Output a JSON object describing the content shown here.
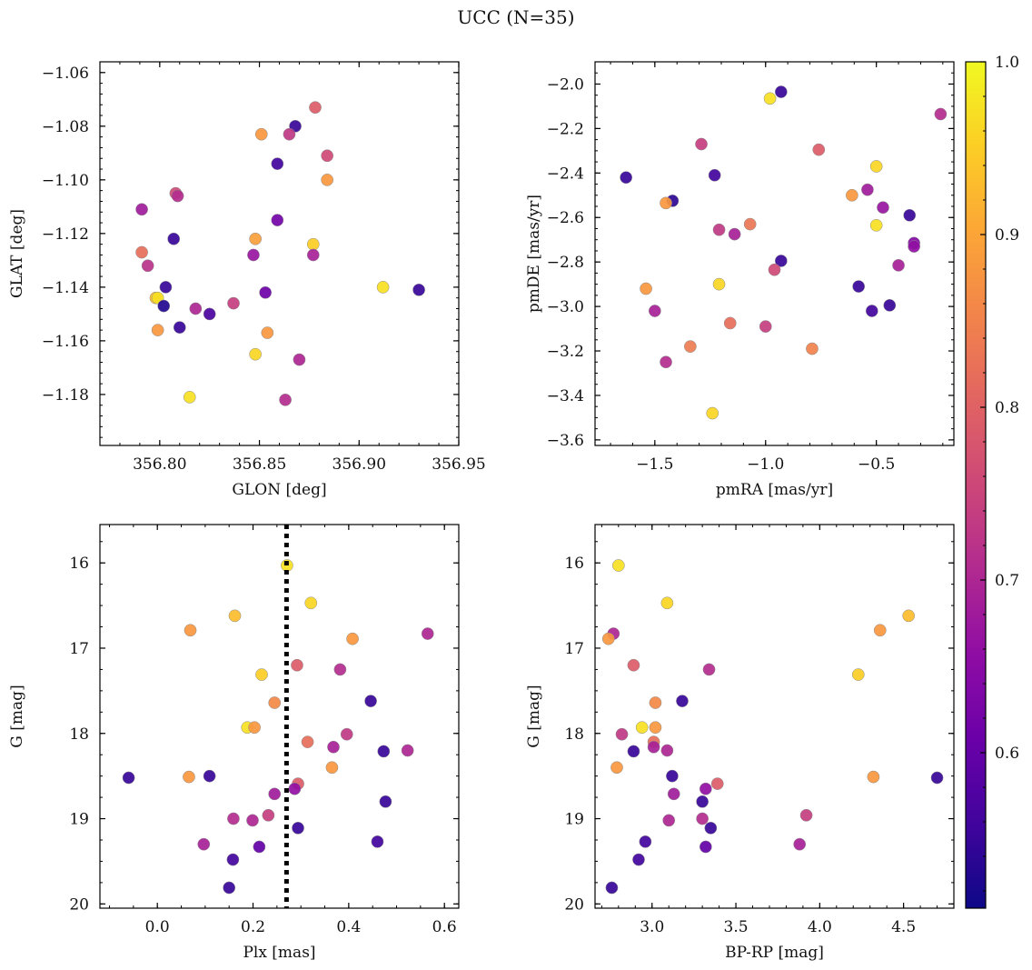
{
  "title": "UCC (N=35)",
  "colorbar": {
    "range": [
      0.51,
      1.0
    ],
    "ticks": [
      0.6,
      0.7,
      0.8,
      0.9,
      1.0
    ],
    "tick_labels": [
      "0.6",
      "0.7",
      "0.8",
      "0.9",
      "1.0"
    ],
    "colormap": "plasma"
  },
  "chart_data": [
    {
      "type": "scatter",
      "xlabel": "GLON [deg]",
      "ylabel": "GLAT [deg]",
      "xlim": [
        356.77,
        356.95
      ],
      "ylim": [
        -1.199,
        -1.056
      ],
      "x_ticks": [
        356.8,
        356.85,
        356.9,
        356.95
      ],
      "x_tick_labels": [
        "356.80",
        "356.85",
        "356.90",
        "356.95"
      ],
      "y_ticks": [
        -1.18,
        -1.16,
        -1.14,
        -1.12,
        -1.1,
        -1.08,
        -1.06
      ],
      "y_tick_labels": [
        "−1.18",
        "−1.16",
        "−1.14",
        "−1.12",
        "−1.10",
        "−1.08",
        "−1.06"
      ],
      "x_minor_step": 0.01,
      "y_minor_step": 0.004,
      "points": [
        {
          "x": 356.878,
          "y": -1.073,
          "c": 0.79
        },
        {
          "x": 356.868,
          "y": -1.08,
          "c": 0.55
        },
        {
          "x": 356.865,
          "y": -1.083,
          "c": 0.73
        },
        {
          "x": 356.851,
          "y": -1.083,
          "c": 0.88
        },
        {
          "x": 356.884,
          "y": -1.091,
          "c": 0.76
        },
        {
          "x": 356.859,
          "y": -1.094,
          "c": 0.56
        },
        {
          "x": 356.884,
          "y": -1.1,
          "c": 0.88
        },
        {
          "x": 356.808,
          "y": -1.105,
          "c": 0.76
        },
        {
          "x": 356.809,
          "y": -1.106,
          "c": 0.71
        },
        {
          "x": 356.791,
          "y": -1.111,
          "c": 0.68
        },
        {
          "x": 356.859,
          "y": -1.115,
          "c": 0.62
        },
        {
          "x": 356.807,
          "y": -1.122,
          "c": 0.55
        },
        {
          "x": 356.848,
          "y": -1.122,
          "c": 0.89
        },
        {
          "x": 356.877,
          "y": -1.124,
          "c": 0.95
        },
        {
          "x": 356.791,
          "y": -1.127,
          "c": 0.82
        },
        {
          "x": 356.847,
          "y": -1.128,
          "c": 0.67
        },
        {
          "x": 356.877,
          "y": -1.128,
          "c": 0.69
        },
        {
          "x": 356.794,
          "y": -1.132,
          "c": 0.72
        },
        {
          "x": 356.803,
          "y": -1.14,
          "c": 0.55
        },
        {
          "x": 356.912,
          "y": -1.14,
          "c": 0.97
        },
        {
          "x": 356.93,
          "y": -1.141,
          "c": 0.55
        },
        {
          "x": 356.853,
          "y": -1.142,
          "c": 0.61
        },
        {
          "x": 356.798,
          "y": -1.144,
          "c": 0.93
        },
        {
          "x": 356.799,
          "y": -1.144,
          "c": 0.97
        },
        {
          "x": 356.837,
          "y": -1.146,
          "c": 0.74
        },
        {
          "x": 356.802,
          "y": -1.147,
          "c": 0.53
        },
        {
          "x": 356.818,
          "y": -1.148,
          "c": 0.7
        },
        {
          "x": 356.825,
          "y": -1.15,
          "c": 0.57
        },
        {
          "x": 356.81,
          "y": -1.155,
          "c": 0.55
        },
        {
          "x": 356.799,
          "y": -1.156,
          "c": 0.88
        },
        {
          "x": 356.854,
          "y": -1.157,
          "c": 0.88
        },
        {
          "x": 356.848,
          "y": -1.165,
          "c": 0.96
        },
        {
          "x": 356.87,
          "y": -1.167,
          "c": 0.7
        },
        {
          "x": 356.815,
          "y": -1.181,
          "c": 0.97
        },
        {
          "x": 356.863,
          "y": -1.182,
          "c": 0.71
        }
      ]
    },
    {
      "type": "scatter",
      "xlabel": "pmRA [mas/yr]",
      "ylabel": "pmDE [mas/yr]",
      "xlim": [
        -1.77,
        -0.15
      ],
      "ylim": [
        -3.625,
        -1.9
      ],
      "x_ticks": [
        -1.5,
        -1.0,
        -0.5
      ],
      "x_tick_labels": [
        "−1.5",
        "−1.0",
        "−0.5"
      ],
      "y_ticks": [
        -3.6,
        -3.4,
        -3.2,
        -3.0,
        -2.8,
        -2.6,
        -2.4,
        -2.2,
        -2.0
      ],
      "y_tick_labels": [
        "−3.6",
        "−3.4",
        "−3.2",
        "−3.0",
        "−2.8",
        "−2.6",
        "−2.4",
        "−2.2",
        "−2.0"
      ],
      "x_minor_step": 0.1,
      "y_minor_step": 0.05,
      "points": [
        {
          "x": -0.93,
          "y": -2.035,
          "c": 0.55
        },
        {
          "x": -0.98,
          "y": -2.065,
          "c": 0.97
        },
        {
          "x": -0.21,
          "y": -2.135,
          "c": 0.71
        },
        {
          "x": -1.29,
          "y": -2.27,
          "c": 0.74
        },
        {
          "x": -0.76,
          "y": -2.295,
          "c": 0.79
        },
        {
          "x": -0.5,
          "y": -2.37,
          "c": 0.96
        },
        {
          "x": -1.23,
          "y": -2.41,
          "c": 0.56
        },
        {
          "x": -1.63,
          "y": -2.42,
          "c": 0.55
        },
        {
          "x": -0.54,
          "y": -2.475,
          "c": 0.68
        },
        {
          "x": -0.61,
          "y": -2.5,
          "c": 0.88
        },
        {
          "x": -1.42,
          "y": -2.525,
          "c": 0.54
        },
        {
          "x": -1.45,
          "y": -2.535,
          "c": 0.88
        },
        {
          "x": -0.47,
          "y": -2.555,
          "c": 0.67
        },
        {
          "x": -0.35,
          "y": -2.59,
          "c": 0.55
        },
        {
          "x": -1.07,
          "y": -2.63,
          "c": 0.83
        },
        {
          "x": -0.5,
          "y": -2.635,
          "c": 0.97
        },
        {
          "x": -1.21,
          "y": -2.655,
          "c": 0.73
        },
        {
          "x": -1.14,
          "y": -2.675,
          "c": 0.69
        },
        {
          "x": -0.33,
          "y": -2.715,
          "c": 0.64
        },
        {
          "x": -0.33,
          "y": -2.73,
          "c": 0.66
        },
        {
          "x": -0.93,
          "y": -2.795,
          "c": 0.55
        },
        {
          "x": -0.4,
          "y": -2.815,
          "c": 0.69
        },
        {
          "x": -0.96,
          "y": -2.835,
          "c": 0.76
        },
        {
          "x": -1.21,
          "y": -2.9,
          "c": 0.96
        },
        {
          "x": -0.58,
          "y": -2.91,
          "c": 0.55
        },
        {
          "x": -1.54,
          "y": -2.92,
          "c": 0.88
        },
        {
          "x": -0.44,
          "y": -2.995,
          "c": 0.55
        },
        {
          "x": -0.52,
          "y": -3.02,
          "c": 0.56
        },
        {
          "x": -1.5,
          "y": -3.02,
          "c": 0.69
        },
        {
          "x": -1.16,
          "y": -3.075,
          "c": 0.82
        },
        {
          "x": -1.0,
          "y": -3.09,
          "c": 0.74
        },
        {
          "x": -1.34,
          "y": -3.18,
          "c": 0.84
        },
        {
          "x": -0.79,
          "y": -3.19,
          "c": 0.85
        },
        {
          "x": -1.45,
          "y": -3.25,
          "c": 0.71
        },
        {
          "x": -1.24,
          "y": -3.48,
          "c": 0.96
        }
      ]
    },
    {
      "type": "scatter",
      "xlabel": "Plx [mas]",
      "ylabel": "G [mag]",
      "xlim": [
        -0.12,
        0.63
      ],
      "ylim": [
        20.05,
        15.55
      ],
      "y_inverted": true,
      "x_ticks": [
        0.0,
        0.2,
        0.4,
        0.6
      ],
      "x_tick_labels": [
        "0.0",
        "0.2",
        "0.4",
        "0.6"
      ],
      "y_ticks": [
        16,
        17,
        18,
        19,
        20
      ],
      "y_tick_labels": [
        "16",
        "17",
        "18",
        "19",
        "20"
      ],
      "x_minor_step": 0.05,
      "y_minor_step": 0.25,
      "vline": {
        "x": 0.27,
        "style": "dotted"
      },
      "points": [
        {
          "x": 0.271,
          "y": 16.03,
          "c": 0.97
        },
        {
          "x": 0.321,
          "y": 16.47,
          "c": 0.96
        },
        {
          "x": 0.162,
          "y": 16.62,
          "c": 0.93
        },
        {
          "x": 0.069,
          "y": 16.79,
          "c": 0.88
        },
        {
          "x": 0.565,
          "y": 16.83,
          "c": 0.7
        },
        {
          "x": 0.408,
          "y": 16.89,
          "c": 0.88
        },
        {
          "x": 0.292,
          "y": 17.2,
          "c": 0.79
        },
        {
          "x": 0.382,
          "y": 17.25,
          "c": 0.71
        },
        {
          "x": 0.218,
          "y": 17.31,
          "c": 0.95
        },
        {
          "x": 0.446,
          "y": 17.62,
          "c": 0.55
        },
        {
          "x": 0.245,
          "y": 17.64,
          "c": 0.86
        },
        {
          "x": 0.188,
          "y": 17.93,
          "c": 0.97
        },
        {
          "x": 0.203,
          "y": 17.93,
          "c": 0.88
        },
        {
          "x": 0.396,
          "y": 18.01,
          "c": 0.73
        },
        {
          "x": 0.314,
          "y": 18.1,
          "c": 0.82
        },
        {
          "x": 0.368,
          "y": 18.16,
          "c": 0.69
        },
        {
          "x": 0.473,
          "y": 18.21,
          "c": 0.55
        },
        {
          "x": 0.523,
          "y": 18.2,
          "c": 0.7
        },
        {
          "x": 0.365,
          "y": 18.4,
          "c": 0.88
        },
        {
          "x": -0.06,
          "y": 18.52,
          "c": 0.55
        },
        {
          "x": 0.066,
          "y": 18.51,
          "c": 0.88
        },
        {
          "x": 0.109,
          "y": 18.5,
          "c": 0.55
        },
        {
          "x": 0.294,
          "y": 18.59,
          "c": 0.79
        },
        {
          "x": 0.287,
          "y": 18.65,
          "c": 0.66
        },
        {
          "x": 0.245,
          "y": 18.71,
          "c": 0.68
        },
        {
          "x": 0.477,
          "y": 18.8,
          "c": 0.55
        },
        {
          "x": 0.232,
          "y": 18.96,
          "c": 0.74
        },
        {
          "x": 0.159,
          "y": 19.0,
          "c": 0.71
        },
        {
          "x": 0.199,
          "y": 19.02,
          "c": 0.7
        },
        {
          "x": 0.294,
          "y": 19.11,
          "c": 0.55
        },
        {
          "x": 0.46,
          "y": 19.27,
          "c": 0.56
        },
        {
          "x": 0.097,
          "y": 19.3,
          "c": 0.69
        },
        {
          "x": 0.213,
          "y": 19.33,
          "c": 0.6
        },
        {
          "x": 0.158,
          "y": 19.48,
          "c": 0.56
        },
        {
          "x": 0.15,
          "y": 19.81,
          "c": 0.55
        }
      ]
    },
    {
      "type": "scatter",
      "xlabel": "BP-RP [mag]",
      "ylabel": "G [mag]",
      "xlim": [
        2.66,
        4.8
      ],
      "ylim": [
        20.05,
        15.55
      ],
      "y_inverted": true,
      "x_ticks": [
        3.0,
        3.5,
        4.0,
        4.5
      ],
      "x_tick_labels": [
        "3.0",
        "3.5",
        "4.0",
        "4.5"
      ],
      "y_ticks": [
        16,
        17,
        18,
        19,
        20
      ],
      "y_tick_labels": [
        "16",
        "17",
        "18",
        "19",
        "20"
      ],
      "x_minor_step": 0.1,
      "y_minor_step": 0.25,
      "points": [
        {
          "x": 2.8,
          "y": 16.03,
          "c": 0.97
        },
        {
          "x": 3.09,
          "y": 16.47,
          "c": 0.96
        },
        {
          "x": 4.53,
          "y": 16.62,
          "c": 0.93
        },
        {
          "x": 4.36,
          "y": 16.79,
          "c": 0.88
        },
        {
          "x": 2.77,
          "y": 16.83,
          "c": 0.7
        },
        {
          "x": 2.74,
          "y": 16.89,
          "c": 0.88
        },
        {
          "x": 2.89,
          "y": 17.2,
          "c": 0.79
        },
        {
          "x": 3.34,
          "y": 17.25,
          "c": 0.71
        },
        {
          "x": 4.23,
          "y": 17.31,
          "c": 0.95
        },
        {
          "x": 3.18,
          "y": 17.62,
          "c": 0.55
        },
        {
          "x": 3.02,
          "y": 17.64,
          "c": 0.86
        },
        {
          "x": 2.94,
          "y": 17.93,
          "c": 0.97
        },
        {
          "x": 3.02,
          "y": 17.93,
          "c": 0.88
        },
        {
          "x": 2.82,
          "y": 18.01,
          "c": 0.73
        },
        {
          "x": 3.01,
          "y": 18.1,
          "c": 0.82
        },
        {
          "x": 3.01,
          "y": 18.16,
          "c": 0.69
        },
        {
          "x": 2.89,
          "y": 18.21,
          "c": 0.55
        },
        {
          "x": 3.09,
          "y": 18.2,
          "c": 0.7
        },
        {
          "x": 2.79,
          "y": 18.4,
          "c": 0.88
        },
        {
          "x": 4.7,
          "y": 18.52,
          "c": 0.55
        },
        {
          "x": 4.32,
          "y": 18.51,
          "c": 0.88
        },
        {
          "x": 3.12,
          "y": 18.5,
          "c": 0.55
        },
        {
          "x": 3.39,
          "y": 18.59,
          "c": 0.79
        },
        {
          "x": 3.32,
          "y": 18.65,
          "c": 0.66
        },
        {
          "x": 3.13,
          "y": 18.71,
          "c": 0.68
        },
        {
          "x": 3.3,
          "y": 18.8,
          "c": 0.55
        },
        {
          "x": 3.92,
          "y": 18.96,
          "c": 0.74
        },
        {
          "x": 3.3,
          "y": 19.0,
          "c": 0.71
        },
        {
          "x": 3.1,
          "y": 19.02,
          "c": 0.7
        },
        {
          "x": 3.35,
          "y": 19.11,
          "c": 0.55
        },
        {
          "x": 2.96,
          "y": 19.27,
          "c": 0.56
        },
        {
          "x": 3.88,
          "y": 19.3,
          "c": 0.69
        },
        {
          "x": 3.32,
          "y": 19.33,
          "c": 0.6
        },
        {
          "x": 2.92,
          "y": 19.48,
          "c": 0.56
        },
        {
          "x": 2.76,
          "y": 19.81,
          "c": 0.55
        }
      ]
    }
  ]
}
